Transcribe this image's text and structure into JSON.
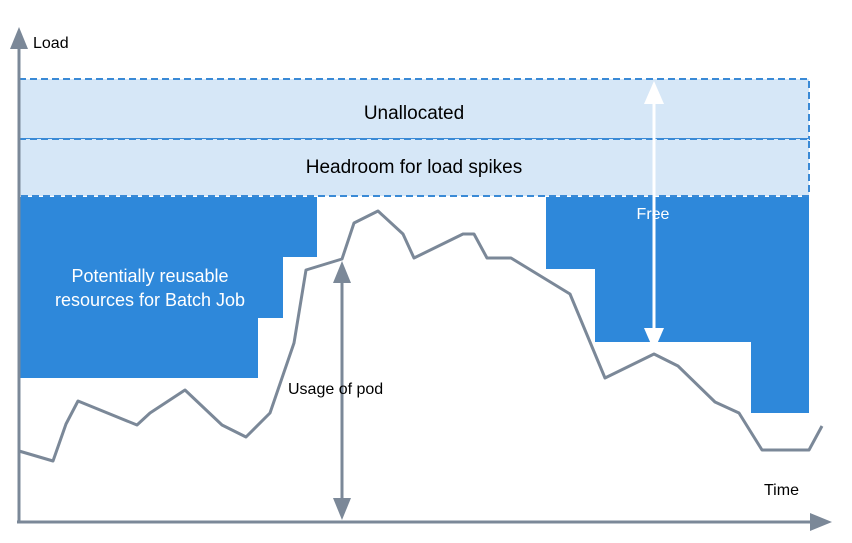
{
  "axes": {
    "y_label": "Load",
    "x_label": "Time"
  },
  "bands": {
    "unallocated": "Unallocated",
    "headroom": "Headroom for load spikes"
  },
  "labels": {
    "reusable_line1": "Potentially reusable",
    "reusable_line2": "resources  for Batch Job",
    "usage": "Usage of pod",
    "free": "Free"
  },
  "colors": {
    "band_fill": "#d6e7f7",
    "band_border": "#3a8ad6",
    "reusable_fill": "#2e88da",
    "usage_line": "#7b8898",
    "axis": "#7b8898",
    "arrow_white": "#ffffff"
  }
}
